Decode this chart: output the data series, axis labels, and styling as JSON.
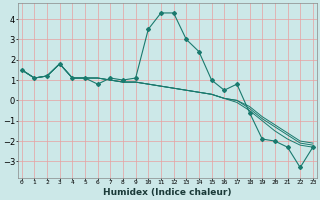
{
  "xlabel": "Humidex (Indice chaleur)",
  "bg_color": "#cce8e8",
  "grid_color": "#e8a0a0",
  "line_color": "#1a7a6e",
  "series": [
    [
      1.5,
      1.1,
      1.2,
      1.8,
      1.1,
      1.1,
      0.8,
      1.1,
      1.0,
      1.1,
      3.5,
      4.3,
      4.3,
      3.0,
      2.4,
      1.0,
      0.5,
      0.8,
      -0.6,
      -1.9,
      -2.0,
      -2.3,
      -3.3,
      -2.3
    ],
    [
      1.5,
      1.1,
      1.2,
      1.8,
      1.1,
      1.1,
      1.1,
      1.0,
      0.9,
      0.9,
      0.8,
      0.7,
      0.6,
      0.5,
      0.4,
      0.3,
      0.1,
      0.0,
      -0.4,
      -0.9,
      -1.3,
      -1.7,
      -2.1,
      -2.2
    ],
    [
      1.5,
      1.1,
      1.2,
      1.8,
      1.1,
      1.1,
      1.1,
      1.0,
      0.9,
      0.9,
      0.8,
      0.7,
      0.6,
      0.5,
      0.4,
      0.3,
      0.1,
      0.0,
      -0.3,
      -0.8,
      -1.2,
      -1.6,
      -2.0,
      -2.1
    ],
    [
      1.5,
      1.1,
      1.2,
      1.8,
      1.1,
      1.1,
      1.1,
      1.0,
      0.9,
      0.9,
      0.8,
      0.7,
      0.6,
      0.5,
      0.4,
      0.3,
      0.1,
      -0.1,
      -0.5,
      -1.0,
      -1.5,
      -1.9,
      -2.2,
      -2.3
    ]
  ],
  "x_ticks": [
    0,
    1,
    2,
    3,
    4,
    5,
    6,
    7,
    8,
    9,
    10,
    11,
    12,
    13,
    14,
    15,
    16,
    17,
    18,
    19,
    20,
    21,
    22,
    23
  ],
  "ylim": [
    -3.8,
    4.8
  ],
  "yticks": [
    -3,
    -2,
    -1,
    0,
    1,
    2,
    3,
    4
  ],
  "xlim": [
    -0.3,
    23.3
  ]
}
